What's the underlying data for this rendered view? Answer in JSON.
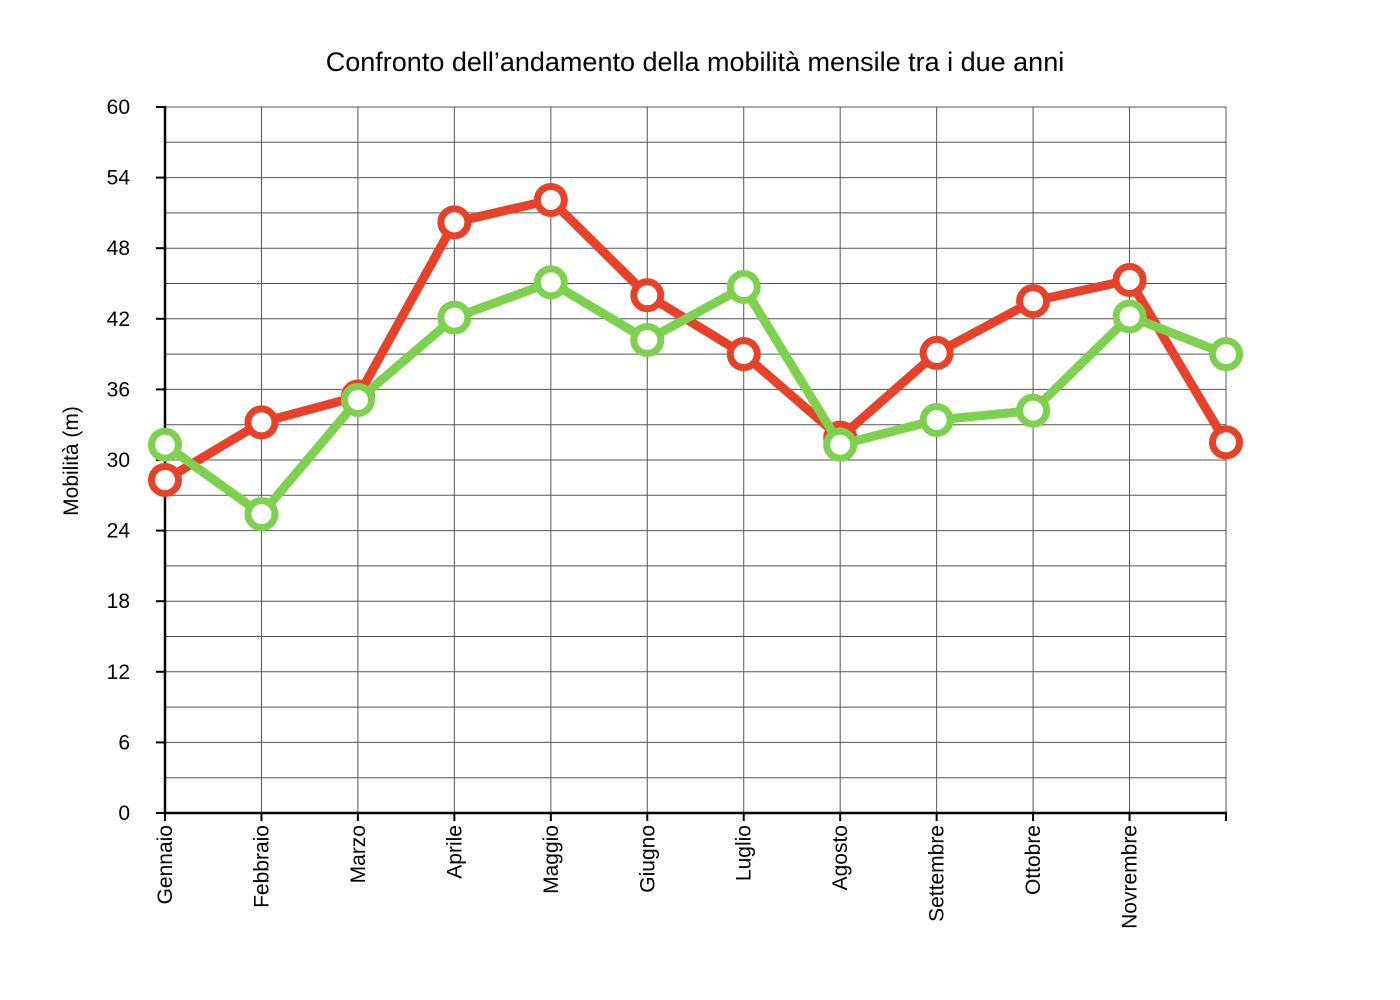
{
  "chart_data": {
    "type": "line",
    "title": "Confronto dell’andamento della mobilità mensile tra i due anni",
    "xlabel": "",
    "ylabel": "Mobilità (m)",
    "ylim": [
      0,
      60
    ],
    "yticks": [
      0,
      6,
      12,
      18,
      24,
      30,
      36,
      42,
      48,
      54,
      60
    ],
    "categories": [
      "Gennaio",
      "Febbraio",
      "Marzo",
      "Aprile",
      "Maggio",
      "Giugno",
      "Luglio",
      "Agosto",
      "Settembre",
      "Ottobre",
      "Novrembre",
      ""
    ],
    "grid": true,
    "legend": "none",
    "series": [
      {
        "color": "#e8412a",
        "values": [
          28.3,
          33.2,
          35.4,
          50.2,
          52.1,
          44.0,
          39.0,
          31.9,
          39.1,
          43.5,
          45.3,
          31.5
        ]
      },
      {
        "color": "#7dd14e",
        "values": [
          31.3,
          25.4,
          35.1,
          42.1,
          45.1,
          40.2,
          44.7,
          31.3,
          33.4,
          34.2,
          42.2,
          39.0
        ]
      }
    ]
  }
}
